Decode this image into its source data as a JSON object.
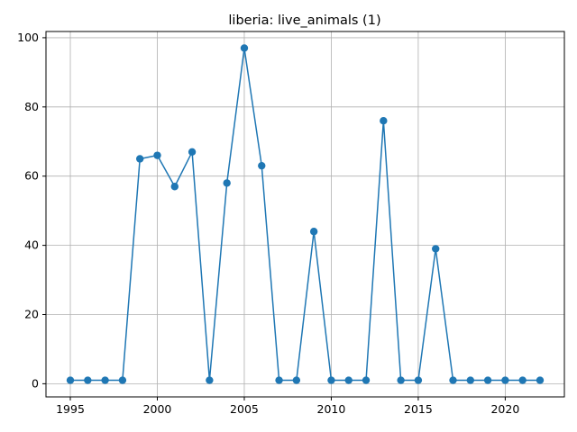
{
  "chart_data": {
    "type": "line",
    "title": "liberia: live_animals (1)",
    "xlabel": "",
    "ylabel": "",
    "xlim": [
      1993.6,
      2023.4
    ],
    "ylim": [
      -3.8,
      101.8
    ],
    "x_ticks": [
      1995,
      2000,
      2005,
      2010,
      2015,
      2020
    ],
    "y_ticks": [
      0,
      20,
      40,
      60,
      80,
      100
    ],
    "grid": true,
    "series": [
      {
        "x": [
          1995,
          1996,
          1997,
          1998,
          1999,
          2000,
          2001,
          2002,
          2003,
          2004,
          2005,
          2006,
          2007,
          2008,
          2009,
          2010,
          2011,
          2012,
          2013,
          2014,
          2015,
          2016,
          2017,
          2018,
          2019,
          2020,
          2021,
          2022
        ],
        "y": [
          1,
          1,
          1,
          1,
          65,
          66,
          57,
          67,
          1,
          58,
          97,
          63,
          1,
          1,
          44,
          1,
          1,
          1,
          76,
          1,
          1,
          39,
          1,
          1,
          1,
          1,
          1,
          1
        ]
      }
    ],
    "colors": {
      "line": "#1f77b4",
      "grid": "#b0b0b0",
      "axis": "#000000"
    }
  }
}
